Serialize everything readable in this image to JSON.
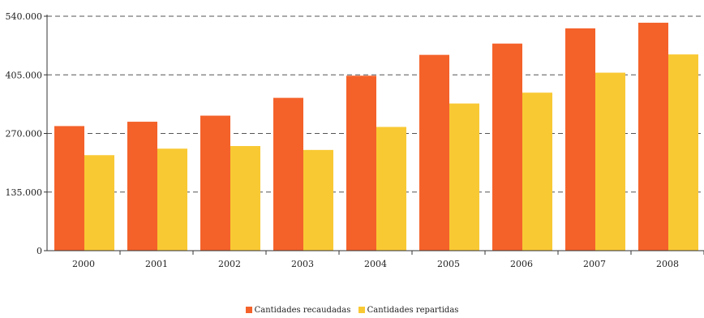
{
  "chart_data": {
    "type": "bar",
    "categories": [
      "2000",
      "2001",
      "2002",
      "2003",
      "2004",
      "2005",
      "2006",
      "2007",
      "2008"
    ],
    "series": [
      {
        "name": "Cantidades recaudadas",
        "color": "#f4622a",
        "values": [
          287000,
          297000,
          311000,
          352000,
          403000,
          451000,
          477000,
          512000,
          525000
        ]
      },
      {
        "name": "Cantidades repartidas",
        "color": "#f9c934",
        "values": [
          220000,
          235000,
          241000,
          232000,
          285000,
          339000,
          364000,
          410000,
          452000
        ]
      }
    ],
    "yticks": [
      0,
      135000,
      270000,
      405000,
      540000
    ],
    "ytick_labels": [
      "0",
      "135.000",
      "270.000",
      "405.000",
      "540.000"
    ],
    "ylim": [
      0,
      540000
    ],
    "grid": "horizontal dashed",
    "legend_position": "bottom-center",
    "title": "",
    "xlabel": "",
    "ylabel": ""
  }
}
